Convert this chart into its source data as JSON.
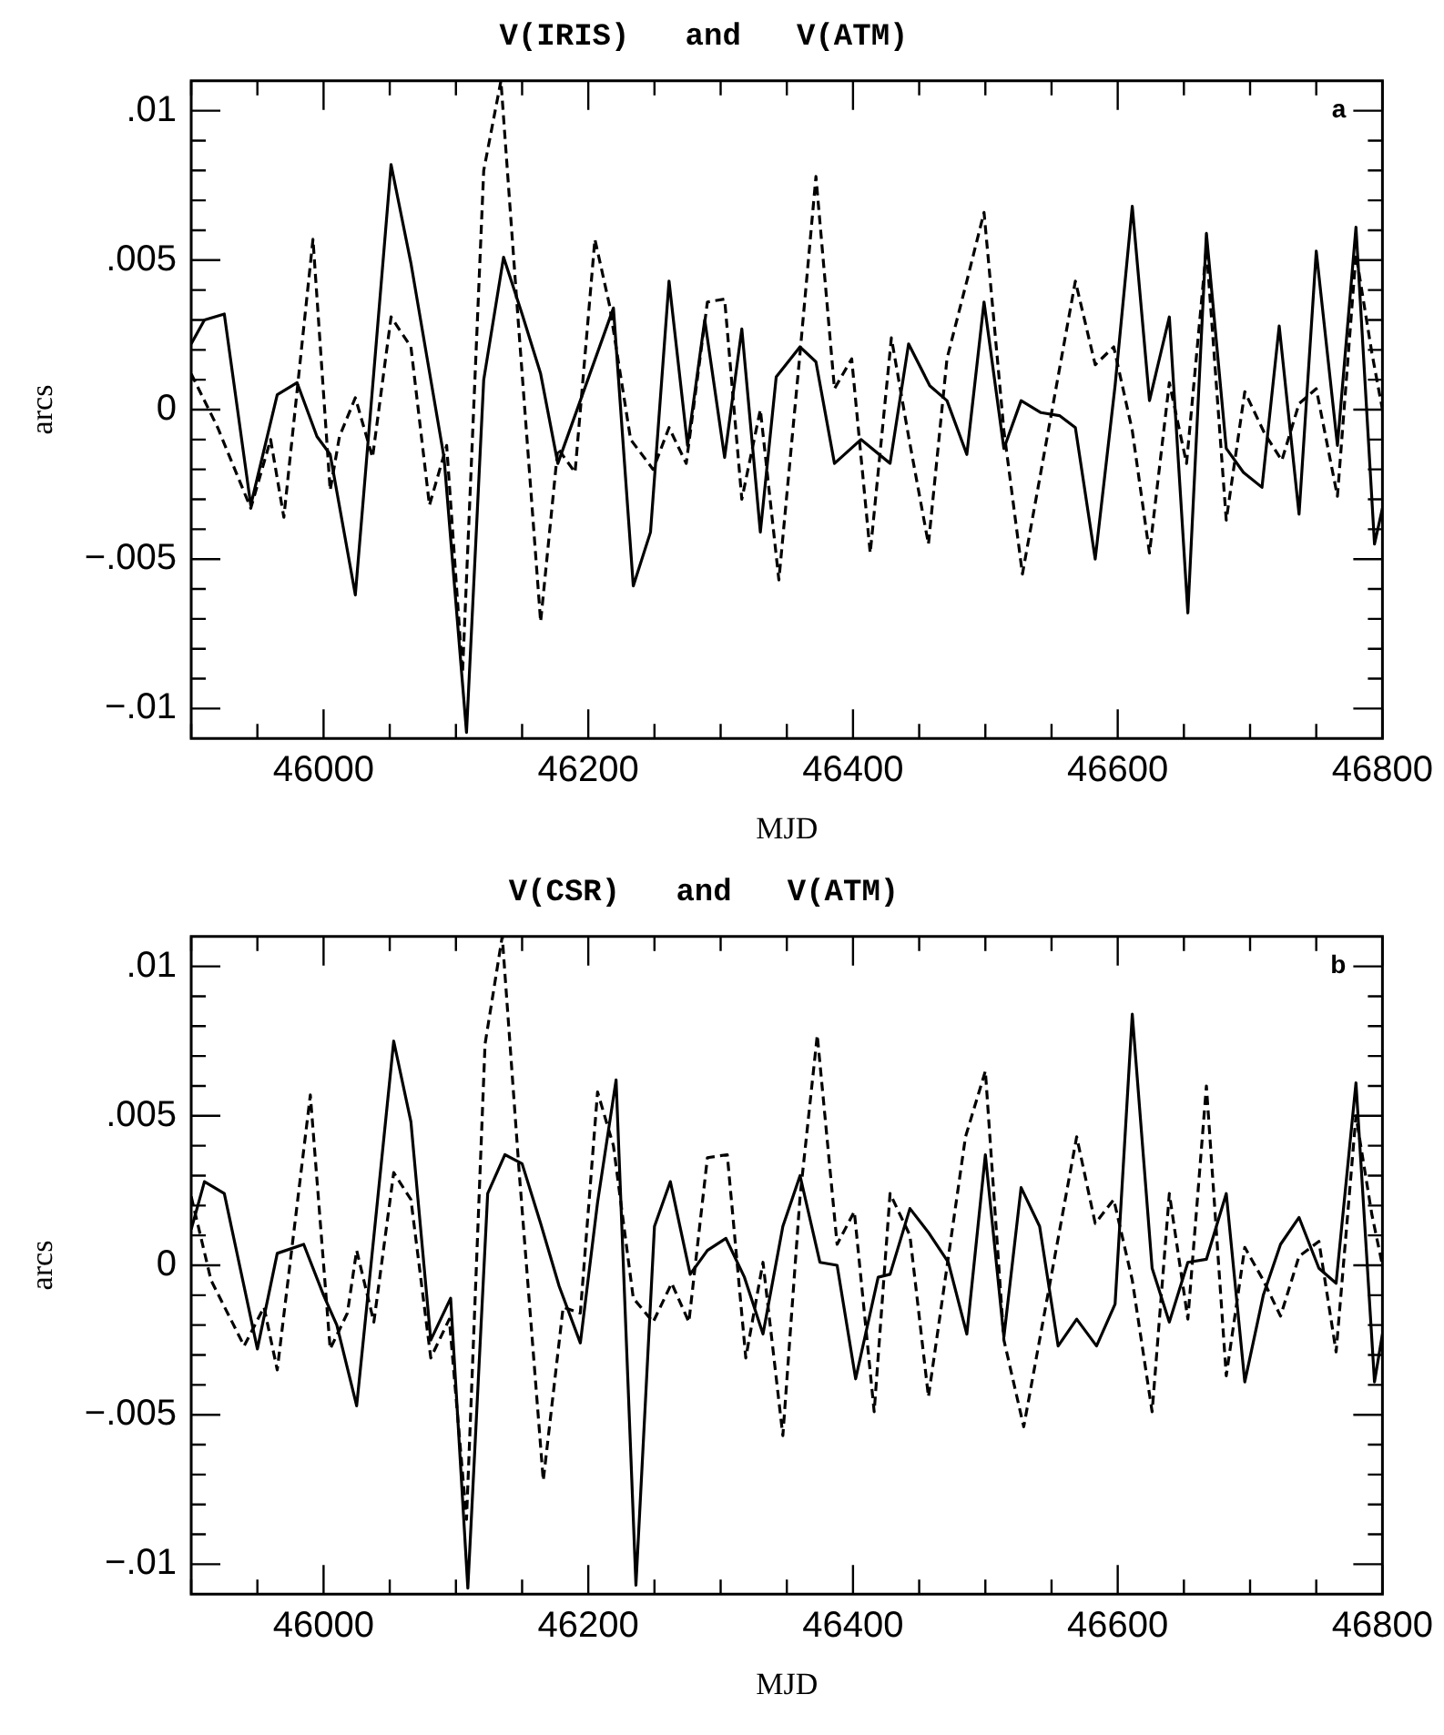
{
  "chart_data": [
    {
      "type": "line",
      "title": "V(IRIS)   and   V(ATM)",
      "xlabel": "MJD",
      "ylabel": "arcs",
      "annotations": [
        "a"
      ],
      "xlim": [
        45900,
        46800
      ],
      "ylim": [
        -0.011,
        0.011
      ],
      "xticks": [
        {
          "value": 45900,
          "label": null
        },
        {
          "value": 45950,
          "label": null
        },
        46000,
        {
          "value": 46050,
          "label": null
        },
        {
          "value": 46100,
          "label": null
        },
        {
          "value": 46150,
          "label": null
        },
        46200,
        {
          "value": 46250,
          "label": null
        },
        {
          "value": 46300,
          "label": null
        },
        {
          "value": 46350,
          "label": null
        },
        46400,
        {
          "value": 46450,
          "label": null
        },
        {
          "value": 46500,
          "label": null
        },
        {
          "value": 46550,
          "label": null
        },
        46600,
        {
          "value": 46650,
          "label": null
        },
        {
          "value": 46700,
          "label": null
        },
        {
          "value": 46750,
          "label": null
        },
        46800
      ],
      "yticks": [
        {
          "value": -0.01,
          "label": "−.01"
        },
        {
          "value": -0.009,
          "label": null
        },
        {
          "value": -0.008,
          "label": null
        },
        {
          "value": -0.007,
          "label": null
        },
        {
          "value": -0.006,
          "label": null
        },
        {
          "value": -0.005,
          "label": "−.005"
        },
        {
          "value": -0.004,
          "label": null
        },
        {
          "value": -0.003,
          "label": null
        },
        {
          "value": -0.002,
          "label": null
        },
        {
          "value": -0.001,
          "label": null
        },
        0,
        {
          "value": 0.001,
          "label": null
        },
        {
          "value": 0.002,
          "label": null
        },
        {
          "value": 0.003,
          "label": null
        },
        {
          "value": 0.004,
          "label": null
        },
        {
          "value": 0.005,
          "label": ".005"
        },
        {
          "value": 0.006,
          "label": null
        },
        {
          "value": 0.007,
          "label": null
        },
        {
          "value": 0.008,
          "label": null
        },
        {
          "value": 0.009,
          "label": null
        },
        {
          "value": 0.01,
          "label": ".01"
        }
      ],
      "series": [
        {
          "color": "#000000",
          "line_style": "solid",
          "x": [
            45900,
            45910,
            45925,
            45945,
            45965,
            45980,
            45995,
            46005,
            46024,
            46051,
            46066,
            46091,
            46108,
            46121,
            46136,
            46150,
            46164,
            46177,
            46219,
            46234,
            46247,
            46261,
            46275,
            46288,
            46303,
            46316,
            46330,
            46342,
            46360,
            46372,
            46386,
            46406,
            46428,
            46442,
            46458,
            46471,
            46486,
            46499,
            46514,
            46527,
            46542,
            46556,
            46568,
            46583,
            46598,
            46611,
            46624,
            46639,
            46653,
            46667,
            46682,
            46695,
            46709,
            46722,
            46737,
            46750,
            46766,
            46780,
            46794,
            46800
          ],
          "values": [
            0.0022,
            0.003,
            0.0032,
            -0.0032,
            0.0005,
            0.0009,
            -0.0009,
            -0.0015,
            -0.0062,
            0.0082,
            0.0049,
            -0.0016,
            -0.0108,
            0.001,
            0.0051,
            0.0032,
            0.0012,
            -0.0018,
            0.0034,
            -0.0059,
            -0.0041,
            0.0043,
            -0.0012,
            0.003,
            -0.0016,
            0.0027,
            -0.0041,
            0.0011,
            0.0021,
            0.0016,
            -0.0018,
            -0.001,
            -0.0018,
            0.0022,
            0.0008,
            0.0003,
            -0.0015,
            0.0036,
            -0.0013,
            0.0003,
            -0.0001,
            -0.0002,
            -0.0006,
            -0.005,
            0.0008,
            0.0068,
            0.0003,
            0.0031,
            -0.0068,
            0.0059,
            -0.0013,
            -0.0021,
            -0.0026,
            0.0028,
            -0.0035,
            0.0053,
            -0.0012,
            0.0061,
            -0.0045,
            -0.0033
          ]
        },
        {
          "color": "#000000",
          "line_style": "dashed",
          "x": [
            45900,
            45920,
            45945,
            45960,
            45970,
            45992,
            46005,
            46012,
            46024,
            46037,
            46051,
            46066,
            46080,
            46093,
            46105,
            46121,
            46134,
            46147,
            46164,
            46177,
            46190,
            46205,
            46216,
            46232,
            46249,
            46261,
            46274,
            46290,
            46303,
            46316,
            46330,
            46344,
            46360,
            46372,
            46386,
            46399,
            46413,
            46429,
            46442,
            46457,
            46471,
            46486,
            46499,
            46514,
            46528,
            46568,
            46583,
            46597,
            46611,
            46624,
            46639,
            46652,
            46667,
            46682,
            46696,
            46711,
            46724,
            46737,
            46750,
            46766,
            46780,
            46792,
            46800
          ],
          "values": [
            0.0012,
            -0.0006,
            -0.0033,
            -0.001,
            -0.0036,
            0.0057,
            -0.0027,
            -0.0009,
            0.0004,
            -0.0016,
            0.0031,
            0.0021,
            -0.0032,
            -0.0012,
            -0.0088,
            0.008,
            0.011,
            0.003,
            -0.0071,
            -0.0013,
            -0.0021,
            0.0057,
            0.0035,
            -0.001,
            -0.002,
            -0.0006,
            -0.0018,
            0.0036,
            0.0037,
            -0.003,
            0,
            -0.0057,
            0.0019,
            0.0078,
            0.0007,
            0.0017,
            -0.0048,
            0.0024,
            -0.0009,
            -0.0045,
            0.0017,
            0.0043,
            0.0066,
            -0.0007,
            -0.0055,
            0.0043,
            0.0015,
            0.0021,
            -0.0007,
            -0.0048,
            0.0009,
            -0.0018,
            0.0054,
            -0.0037,
            0.0006,
            -0.0008,
            -0.0017,
            0.0002,
            0.0007,
            -0.0029,
            0.0052,
            0.0019,
            0
          ]
        }
      ]
    },
    {
      "type": "line",
      "title": "V(CSR)   and   V(ATM)",
      "xlabel": "MJD",
      "ylabel": "arcs",
      "annotations": [
        "b"
      ],
      "xlim": [
        45900,
        46800
      ],
      "ylim": [
        -0.011,
        0.011
      ],
      "xticks": [
        {
          "value": 45900,
          "label": null
        },
        {
          "value": 45950,
          "label": null
        },
        46000,
        {
          "value": 46050,
          "label": null
        },
        {
          "value": 46100,
          "label": null
        },
        {
          "value": 46150,
          "label": null
        },
        46200,
        {
          "value": 46250,
          "label": null
        },
        {
          "value": 46300,
          "label": null
        },
        {
          "value": 46350,
          "label": null
        },
        46400,
        {
          "value": 46450,
          "label": null
        },
        {
          "value": 46500,
          "label": null
        },
        {
          "value": 46550,
          "label": null
        },
        46600,
        {
          "value": 46650,
          "label": null
        },
        {
          "value": 46700,
          "label": null
        },
        {
          "value": 46750,
          "label": null
        },
        46800
      ],
      "yticks": [
        {
          "value": -0.01,
          "label": "−.01"
        },
        {
          "value": -0.009,
          "label": null
        },
        {
          "value": -0.008,
          "label": null
        },
        {
          "value": -0.007,
          "label": null
        },
        {
          "value": -0.006,
          "label": null
        },
        {
          "value": -0.005,
          "label": "−.005"
        },
        {
          "value": -0.004,
          "label": null
        },
        {
          "value": -0.003,
          "label": null
        },
        {
          "value": -0.002,
          "label": null
        },
        {
          "value": -0.001,
          "label": null
        },
        0,
        {
          "value": 0.001,
          "label": null
        },
        {
          "value": 0.002,
          "label": null
        },
        {
          "value": 0.003,
          "label": null
        },
        {
          "value": 0.004,
          "label": null
        },
        {
          "value": 0.005,
          "label": ".005"
        },
        {
          "value": 0.006,
          "label": null
        },
        {
          "value": 0.007,
          "label": null
        },
        {
          "value": 0.008,
          "label": null
        },
        {
          "value": 0.009,
          "label": null
        },
        {
          "value": 0.01,
          "label": ".01"
        }
      ],
      "series": [
        {
          "color": "#000000",
          "line_style": "solid",
          "x": [
            45900,
            45910,
            45925,
            45950,
            45965,
            45985,
            46000,
            46010,
            46025,
            46053,
            46066,
            46081,
            46096,
            46109,
            46124,
            46137,
            46150,
            46164,
            46178,
            46194,
            46207,
            46221,
            46236,
            46250,
            46262,
            46277,
            46290,
            46304,
            46318,
            46332,
            46347,
            46360,
            46375,
            46388,
            46402,
            46419,
            46428,
            46443,
            46457,
            46472,
            46486,
            46500,
            46514,
            46527,
            46541,
            46555,
            46569,
            46584,
            46598,
            46611,
            46626,
            46639,
            46653,
            46667,
            46682,
            46696,
            46710,
            46723,
            46737,
            46752,
            46765,
            46780,
            46794,
            46800
          ],
          "values": [
            0.0012,
            0.0028,
            0.0024,
            -0.0028,
            0.0004,
            0.0007,
            -0.001,
            -0.002,
            -0.0047,
            0.0075,
            0.0048,
            -0.0025,
            -0.0011,
            -0.0108,
            0.0024,
            0.0037,
            0.0034,
            0.0014,
            -0.0007,
            -0.0026,
            0.0021,
            0.0062,
            -0.0107,
            0.0013,
            0.0028,
            -0.0003,
            0.0005,
            0.0009,
            -0.0004,
            -0.0023,
            0.0013,
            0.003,
            0.0001,
            0,
            -0.0038,
            -0.0004,
            -0.0003,
            0.0019,
            0.0011,
            0.0001,
            -0.0023,
            0.0037,
            -0.0024,
            0.0026,
            0.0013,
            -0.0027,
            -0.0018,
            -0.0027,
            -0.0013,
            0.0084,
            -0.0001,
            -0.0019,
            0.0001,
            0.0002,
            0.0024,
            -0.0039,
            -0.001,
            0.0007,
            0.0016,
            -0.0001,
            -0.0006,
            0.0061,
            -0.0039,
            -0.0023
          ]
        },
        {
          "color": "#000000",
          "line_style": "dashed",
          "x": [
            45900,
            45915,
            45940,
            45955,
            45965,
            45990,
            46005,
            46018,
            46025,
            46038,
            46053,
            46066,
            46081,
            46095,
            46108,
            46122,
            46135,
            46148,
            46166,
            46181,
            46194,
            46207,
            46219,
            46234,
            46249,
            46263,
            46276,
            46290,
            46305,
            46319,
            46332,
            46347,
            46360,
            46373,
            46388,
            46401,
            46416,
            46428,
            46443,
            46457,
            46485,
            46500,
            46514,
            46529,
            46569,
            46583,
            46597,
            46611,
            46626,
            46639,
            46653,
            46667,
            46682,
            46696,
            46710,
            46723,
            46737,
            46752,
            46765,
            46780,
            46792,
            46800
          ],
          "values": [
            0.0023,
            -0.0005,
            -0.0027,
            -0.0014,
            -0.0035,
            0.0057,
            -0.0028,
            -0.0016,
            0.0005,
            -0.0019,
            0.0031,
            0.0022,
            -0.0031,
            -0.0018,
            -0.0085,
            0.0074,
            0.011,
            0.003,
            -0.0072,
            -0.0014,
            -0.0016,
            0.0058,
            0.004,
            -0.0011,
            -0.0019,
            -0.0006,
            -0.0019,
            0.0036,
            0.0037,
            -0.0031,
            0.0001,
            -0.0057,
            0.0023,
            0.0077,
            0.0007,
            0.0018,
            -0.0049,
            0.0024,
            0.001,
            -0.0044,
            0.0043,
            0.0065,
            -0.0025,
            -0.0054,
            0.0043,
            0.0014,
            0.0022,
            -0.0005,
            -0.0049,
            0.0024,
            -0.0018,
            0.006,
            -0.0037,
            0.0006,
            -0.0005,
            -0.0017,
            0.0003,
            0.0008,
            -0.0029,
            0.005,
            0.0017,
            0
          ]
        }
      ]
    }
  ]
}
